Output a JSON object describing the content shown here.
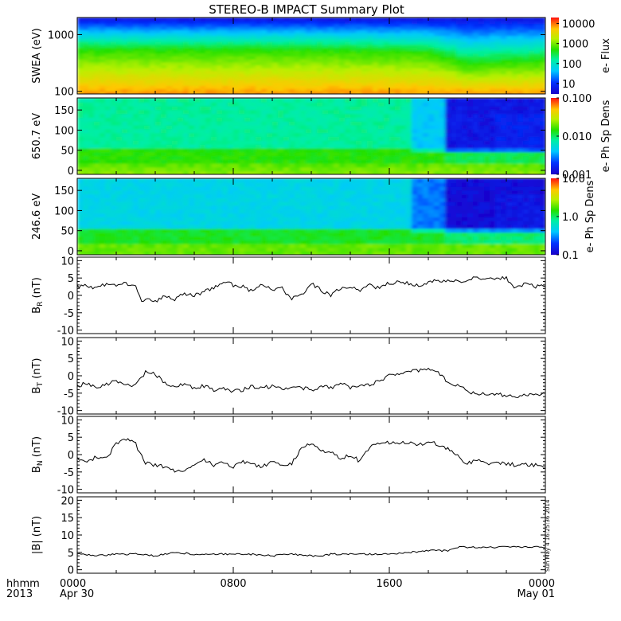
{
  "title": "STEREO-B IMPACT Summary Plot",
  "stamp": "Sun May  4 16:25:36 2014",
  "x_axis": {
    "label_line1": "hhmm",
    "label_line2": "2013",
    "ticks": [
      {
        "hour": 0,
        "label1": "0000",
        "label2": "Apr 30"
      },
      {
        "hour": 8,
        "label1": "0800",
        "label2": ""
      },
      {
        "hour": 16,
        "label1": "1600",
        "label2": ""
      },
      {
        "hour": 24,
        "label1": "0000",
        "label2": "May 01"
      }
    ],
    "range_hours": [
      0,
      24
    ]
  },
  "chart_data": [
    {
      "type": "heatmap",
      "ylabel": "SWEA (eV)",
      "y_scale": "log",
      "ylim": [
        90,
        2000
      ],
      "y_ticks": [
        {
          "v": 100,
          "label": "100"
        },
        {
          "v": 1000,
          "label": "1000"
        }
      ],
      "colorbar": {
        "label": "e- Flux",
        "scale": "log",
        "range": [
          3,
          20000
        ],
        "ticks": [
          {
            "v": 10,
            "label": "10"
          },
          {
            "v": 100,
            "label": "100"
          },
          {
            "v": 1000,
            "label": "1000"
          },
          {
            "v": 10000,
            "label": "10000"
          }
        ]
      },
      "x_hours": [
        0,
        4,
        8,
        12,
        16,
        18,
        20,
        22,
        24
      ],
      "ridge_energy_eV": [
        560,
        560,
        560,
        560,
        520,
        500,
        300,
        340,
        360
      ]
    },
    {
      "type": "heatmap",
      "ylabel": "650.7 eV",
      "y_scale": "linear",
      "ylim": [
        -10,
        180
      ],
      "y_ticks": [
        {
          "v": 0,
          "label": "0"
        },
        {
          "v": 50,
          "label": "50"
        },
        {
          "v": 100,
          "label": "100"
        },
        {
          "v": 150,
          "label": "150"
        }
      ],
      "colorbar": {
        "label": "e- Ph Sp Dens",
        "scale": "log",
        "range": [
          0.001,
          0.1
        ],
        "ticks": [
          {
            "v": 0.001,
            "label": "0.001"
          },
          {
            "v": 0.01,
            "label": "0.010"
          },
          {
            "v": 0.1,
            "label": "0.100"
          }
        ]
      }
    },
    {
      "type": "heatmap",
      "ylabel": "246.6 eV",
      "y_scale": "linear",
      "ylim": [
        -10,
        180
      ],
      "y_ticks": [
        {
          "v": 0,
          "label": "0"
        },
        {
          "v": 50,
          "label": "50"
        },
        {
          "v": 100,
          "label": "100"
        },
        {
          "v": 150,
          "label": "150"
        }
      ],
      "colorbar": {
        "label": "e- Ph Sp Dens",
        "scale": "log",
        "range": [
          0.1,
          10
        ],
        "ticks": [
          {
            "v": 0.1,
            "label": "0.1"
          },
          {
            "v": 1,
            "label": "1.0"
          },
          {
            "v": 10,
            "label": "10.0"
          }
        ]
      }
    },
    {
      "type": "line",
      "ylabel": "B_R (nT)",
      "ylim": [
        -11,
        11
      ],
      "y_ticks": [
        -10,
        -5,
        0,
        5,
        10
      ],
      "x": [
        0,
        0.5,
        1,
        1.5,
        2,
        2.5,
        3,
        3.3,
        3.5,
        4,
        4.5,
        5,
        5.5,
        6,
        6.5,
        7,
        7.5,
        8,
        8.5,
        9,
        9.5,
        10,
        10.5,
        11,
        11.5,
        12,
        12.5,
        13,
        13.5,
        14,
        14.5,
        15,
        15.5,
        16,
        16.5,
        17,
        17.5,
        18,
        18.3,
        18.6,
        19,
        19.5,
        20,
        20.5,
        21,
        21.5,
        22,
        22.5,
        23,
        23.5,
        24
      ],
      "y": [
        2.5,
        3.0,
        2.0,
        3.5,
        3.0,
        3.5,
        2.8,
        -1.5,
        -1.2,
        -2.0,
        0.0,
        -1.0,
        0.5,
        0.0,
        1.0,
        2.0,
        4.0,
        3.0,
        2.5,
        1.0,
        3.5,
        1.5,
        2.0,
        -1.0,
        0.0,
        3.5,
        1.5,
        0.0,
        2.0,
        2.5,
        1.5,
        3.0,
        2.0,
        3.5,
        4.0,
        3.5,
        3.0,
        3.5,
        4.5,
        4.0,
        4.5,
        4.0,
        4.5,
        5.0,
        4.5,
        5.0,
        5.0,
        2.0,
        3.5,
        2.5,
        3.0
      ]
    },
    {
      "type": "line",
      "ylabel": "B_T (nT)",
      "ylim": [
        -11,
        11
      ],
      "y_ticks": [
        -10,
        -5,
        0,
        5,
        10
      ],
      "x": [
        0,
        0.5,
        1,
        1.5,
        2,
        2.5,
        3,
        3.5,
        4,
        4.5,
        5,
        5.5,
        6,
        6.5,
        7,
        7.5,
        8,
        8.5,
        9,
        9.5,
        10,
        10.5,
        11,
        11.5,
        12,
        12.5,
        13,
        13.5,
        14,
        14.5,
        15,
        15.5,
        16,
        16.5,
        17,
        17.5,
        18,
        18.5,
        19,
        19.5,
        20,
        20.5,
        21,
        21.5,
        22,
        22.5,
        23,
        23.5,
        24
      ],
      "y": [
        -3.0,
        -2.0,
        -3.5,
        -2.5,
        -1.5,
        -3.0,
        -2.5,
        1.0,
        0.5,
        -2.0,
        -3.0,
        -2.5,
        -3.5,
        -3.0,
        -4.0,
        -3.5,
        -4.5,
        -4.0,
        -3.0,
        -3.5,
        -3.0,
        -4.0,
        -3.5,
        -3.5,
        -4.0,
        -3.0,
        -3.5,
        -2.0,
        -3.5,
        -3.0,
        -2.5,
        -1.5,
        0.0,
        0.5,
        1.5,
        1.5,
        2.0,
        1.0,
        -2.0,
        -2.5,
        -4.5,
        -5.0,
        -5.5,
        -5.5,
        -5.5,
        -6.0,
        -5.5,
        -5.0,
        -5.5
      ]
    },
    {
      "type": "line",
      "ylabel": "B_N (nT)",
      "ylim": [
        -11,
        11
      ],
      "y_ticks": [
        -10,
        -5,
        0,
        5,
        10
      ],
      "x": [
        0,
        0.5,
        1,
        1.5,
        2,
        2.5,
        3,
        3.5,
        4,
        4.5,
        5,
        5.5,
        6,
        6.5,
        7,
        7.5,
        8,
        8.5,
        9,
        9.5,
        10,
        10.5,
        11,
        11.5,
        12,
        12.5,
        13,
        13.5,
        14,
        14.5,
        15,
        15.5,
        16,
        16.5,
        17,
        17.5,
        18,
        18.5,
        19,
        19.5,
        20,
        20.5,
        21,
        21.5,
        22,
        22.5,
        23,
        23.5,
        24
      ],
      "y": [
        -1.0,
        -2.5,
        -0.5,
        -1.0,
        3.0,
        4.5,
        3.0,
        -2.5,
        -3.0,
        -3.5,
        -4.5,
        -5.0,
        -3.0,
        -1.5,
        -3.0,
        -2.0,
        -3.5,
        -2.0,
        -3.0,
        -3.5,
        -2.0,
        -3.0,
        -2.5,
        2.0,
        3.5,
        1.0,
        0.5,
        -1.0,
        0.0,
        -2.0,
        2.5,
        3.5,
        3.5,
        3.5,
        3.5,
        3.0,
        3.5,
        3.0,
        1.5,
        -0.5,
        -2.5,
        -1.5,
        -2.5,
        -2.5,
        -2.5,
        -3.0,
        -3.0,
        -3.0,
        -3.5
      ]
    },
    {
      "type": "line",
      "ylabel": "|B| (nT)",
      "ylim": [
        -1,
        21
      ],
      "y_ticks": [
        0,
        5,
        10,
        15,
        20
      ],
      "x": [
        0,
        1,
        2,
        3,
        4,
        5,
        6,
        7,
        8,
        9,
        10,
        11,
        12,
        12.5,
        13,
        14,
        15,
        16,
        17,
        18,
        19,
        19.5,
        20,
        21,
        22,
        23,
        24
      ],
      "y": [
        4.5,
        4.0,
        4.5,
        4.5,
        4.0,
        5.0,
        4.5,
        4.5,
        4.5,
        4.5,
        4.0,
        4.5,
        4.0,
        4.0,
        4.5,
        4.5,
        4.5,
        4.5,
        5.0,
        5.5,
        5.5,
        6.5,
        6.5,
        6.5,
        6.5,
        6.5,
        6.5
      ]
    }
  ]
}
